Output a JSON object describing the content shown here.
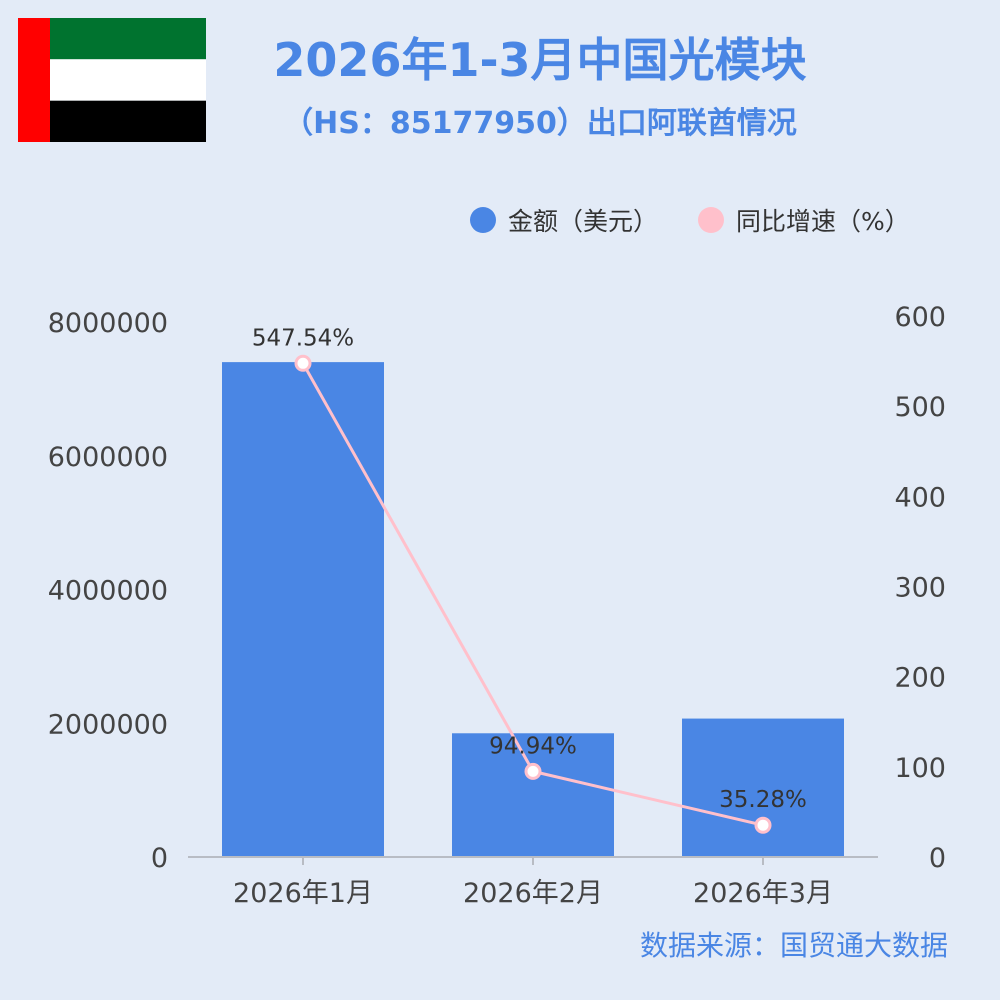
{
  "header": {
    "title_line1": "2026年1-3月中国光模块",
    "title_line2": "（HS：85177950）出口阿联酋情况"
  },
  "flag": {
    "name": "uae-flag",
    "colors": {
      "red": "#ff0000",
      "green": "#00732f",
      "white": "#ffffff",
      "black": "#000000"
    }
  },
  "source": "数据来源：国贸通大数据",
  "colors": {
    "background": "#e3ebf7",
    "bar": "#4a86e4",
    "line": "#ffc0cb",
    "title": "#4a86e4"
  },
  "chart_data": {
    "type": "bar+line",
    "categories": [
      "2026年1月",
      "2026年2月",
      "2026年3月"
    ],
    "series": [
      {
        "name": "金额（美元）",
        "type": "bar",
        "axis": "left",
        "values": [
          7400000,
          1850000,
          2070000
        ]
      },
      {
        "name": "同比增速（%）",
        "type": "line",
        "axis": "right",
        "values": [
          547.54,
          94.94,
          35.28
        ],
        "labels": [
          "547.54%",
          "94.94%",
          "35.28%"
        ]
      }
    ],
    "y_left": {
      "range": [
        0,
        8000000
      ],
      "ticks": [
        0,
        2000000,
        4000000,
        6000000,
        8000000
      ],
      "tick_labels": [
        "0",
        "2000000",
        "4000000",
        "6000000",
        "8000000"
      ]
    },
    "y_right": {
      "range": [
        0,
        600
      ],
      "ticks": [
        0,
        100,
        200,
        300,
        400,
        500,
        600
      ],
      "tick_labels": [
        "0",
        "100",
        "200",
        "300",
        "400",
        "500",
        "600"
      ]
    },
    "legend_position": "top-right",
    "grid": false
  }
}
